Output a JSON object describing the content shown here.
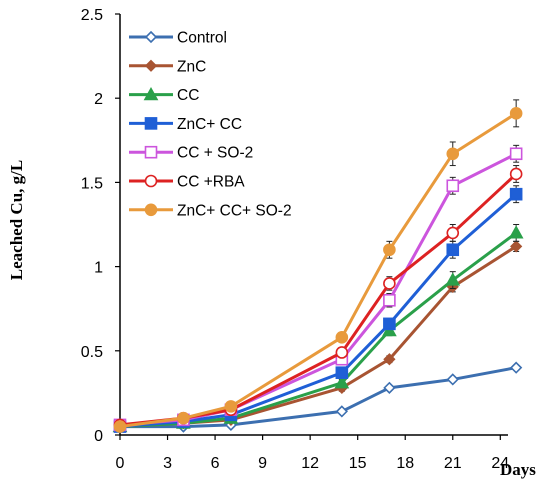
{
  "chart_data": {
    "type": "line",
    "xlabel": "Days",
    "ylabel": "Leached Cu, g/L",
    "xlim": [
      0,
      26
    ],
    "ylim": [
      0,
      2.5
    ],
    "xticks": [
      0,
      3,
      6,
      9,
      12,
      15,
      18,
      21,
      24
    ],
    "yticks": [
      0,
      0.5,
      1,
      1.5,
      2,
      2.5
    ],
    "xtick_labels": [
      "0",
      "3",
      "6",
      "9",
      "12",
      "15",
      "18",
      "21",
      "24"
    ],
    "ytick_labels": [
      "0",
      "0.5",
      "1",
      "1.5",
      "2",
      "2.5"
    ],
    "grid": false,
    "legend_position": "top-left",
    "x": [
      0,
      4,
      7,
      14,
      17,
      21,
      25
    ],
    "series": [
      {
        "name": "Control",
        "color": "#3c6fb0",
        "marker": "diamond-open",
        "values": [
          0.05,
          0.05,
          0.06,
          0.14,
          0.28,
          0.33,
          0.4
        ],
        "errors": [
          0.01,
          0.01,
          0.01,
          0.01,
          0.01,
          0.01,
          0.01
        ]
      },
      {
        "name": "ZnC",
        "color": "#a85432",
        "marker": "diamond-filled",
        "values": [
          0.05,
          0.07,
          0.09,
          0.28,
          0.45,
          0.88,
          1.12
        ],
        "errors": [
          0.01,
          0.01,
          0.01,
          0.02,
          0.02,
          0.03,
          0.03
        ]
      },
      {
        "name": "CC",
        "color": "#2aa04a",
        "marker": "triangle-filled",
        "values": [
          0.05,
          0.07,
          0.1,
          0.31,
          0.62,
          0.92,
          1.2
        ],
        "errors": [
          0.01,
          0.01,
          0.01,
          0.02,
          0.03,
          0.05,
          0.05
        ]
      },
      {
        "name": "ZnC+ CC",
        "color": "#1f5fd6",
        "marker": "square-filled",
        "values": [
          0.05,
          0.08,
          0.12,
          0.37,
          0.66,
          1.1,
          1.43
        ],
        "errors": [
          0.01,
          0.01,
          0.01,
          0.02,
          0.03,
          0.05,
          0.05
        ]
      },
      {
        "name": "CC + SO-2",
        "color": "#cc55dd",
        "marker": "square-open",
        "values": [
          0.06,
          0.09,
          0.15,
          0.45,
          0.8,
          1.48,
          1.67
        ],
        "errors": [
          0.01,
          0.01,
          0.01,
          0.02,
          0.04,
          0.05,
          0.05
        ]
      },
      {
        "name": "CC +RBA",
        "color": "#dd2222",
        "marker": "circle-open",
        "values": [
          0.06,
          0.1,
          0.15,
          0.49,
          0.9,
          1.2,
          1.55
        ],
        "errors": [
          0.01,
          0.01,
          0.01,
          0.02,
          0.04,
          0.05,
          0.05
        ]
      },
      {
        "name": "ZnC+ CC+ SO-2",
        "color": "#e89a3c",
        "marker": "circle-filled",
        "values": [
          0.05,
          0.1,
          0.17,
          0.58,
          1.1,
          1.67,
          1.91
        ],
        "errors": [
          0.01,
          0.01,
          0.01,
          0.02,
          0.05,
          0.07,
          0.08
        ]
      }
    ]
  }
}
